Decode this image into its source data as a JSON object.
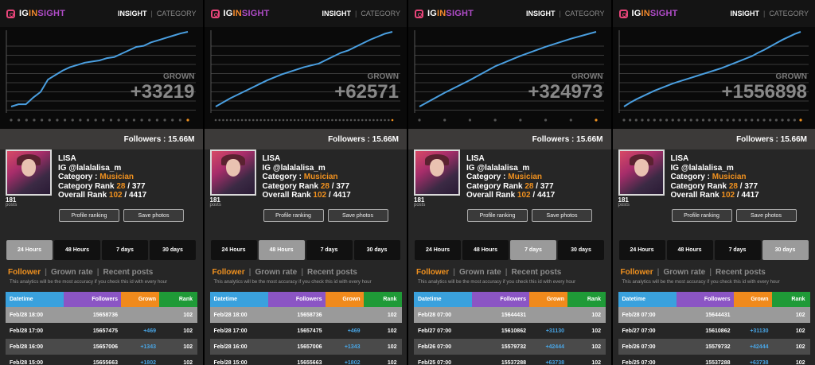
{
  "brand": {
    "part1": "IG",
    "part2": "IN",
    "part3": "SIGHT"
  },
  "nav": {
    "insight": "INSIGHT",
    "sep": "|",
    "category": "CATEGORY"
  },
  "profile": {
    "name": "LISA",
    "ig_label": "IG @lalalalisa_m",
    "category_label": "Category : ",
    "category_value": "Musician",
    "category_rank_label": "Category Rank ",
    "category_rank_value": "28",
    "category_rank_total": " / 377",
    "overall_rank_label": "Overall Rank ",
    "overall_rank_value": "102",
    "overall_rank_total": " / 4417",
    "posts_count": "181",
    "posts_label": "posts",
    "followers_text": "Followers : 15.66M"
  },
  "buttons": {
    "profile_ranking": "Profile ranking",
    "save_photos": "Save photos"
  },
  "periods": [
    "24 Hours",
    "48 Hours",
    "7 days",
    "30 days"
  ],
  "tabs": {
    "follower": "Follower",
    "grown_rate": "Grown rate",
    "recent_posts": "Recent posts",
    "sep": "|"
  },
  "note": "This analytics will be the most accuracy if you check this id with every hour",
  "table_headers": {
    "datetime": "Datetime",
    "followers": "Followers",
    "grown": "Grown",
    "rank": "Rank"
  },
  "grown_label": "GROWN",
  "colors": {
    "line": "#4a9fe0",
    "accent": "#f0911f",
    "dot": "#555555",
    "dot_active": "#f0911f"
  },
  "panels": [
    {
      "active_period": 0,
      "grown_value": "+33219",
      "chart_data": {
        "type": "line",
        "x": [
          0,
          1,
          2,
          3,
          4,
          5,
          6,
          7,
          8,
          9,
          10,
          11,
          12,
          13,
          14,
          15,
          16,
          17,
          18,
          19,
          20,
          21,
          22,
          23,
          24
        ],
        "series": [
          {
            "values": [
              0,
              1000,
              1000,
              4000,
              6500,
              12000,
              14000,
              16000,
              17500,
              18500,
              19500,
              20000,
              20500,
              21500,
              22000,
              23500,
              25000,
              26500,
              27000,
              28500,
              29500,
              30500,
              31500,
              32500,
              33219
            ]
          }
        ],
        "dots": 24
      },
      "rows": [
        {
          "date": "Feb/28 18:00",
          "followers": "15658736",
          "grown": "",
          "rank": "102"
        },
        {
          "date": "Feb/28 17:00",
          "followers": "15657475",
          "grown": "+469",
          "rank": "102"
        },
        {
          "date": "Feb/28 16:00",
          "followers": "15657006",
          "grown": "+1343",
          "rank": "102"
        },
        {
          "date": "Feb/28 15:00",
          "followers": "15655663",
          "grown": "+1802",
          "rank": "102"
        }
      ]
    },
    {
      "active_period": 1,
      "grown_value": "+62571",
      "chart_data": {
        "type": "line",
        "x": [
          0,
          1,
          2,
          3,
          4,
          5,
          6,
          7,
          8,
          9,
          10,
          11,
          12,
          13,
          14,
          15,
          16,
          17,
          18,
          19,
          20,
          21,
          22,
          23,
          24
        ],
        "series": [
          {
            "values": [
              0,
              3500,
              7000,
              10000,
              13000,
              16000,
              19000,
              22000,
              24500,
              27000,
              29000,
              31000,
              33000,
              34500,
              36000,
              39000,
              42000,
              45000,
              47000,
              50000,
              53000,
              56000,
              58500,
              61000,
              62571
            ]
          }
        ],
        "dots": 48
      },
      "rows": [
        {
          "date": "Feb/28 18:00",
          "followers": "15658736",
          "grown": "",
          "rank": "102"
        },
        {
          "date": "Feb/28 17:00",
          "followers": "15657475",
          "grown": "+469",
          "rank": "102"
        },
        {
          "date": "Feb/28 16:00",
          "followers": "15657006",
          "grown": "+1343",
          "rank": "102"
        },
        {
          "date": "Feb/28 15:00",
          "followers": "15655663",
          "grown": "+1802",
          "rank": "102"
        }
      ]
    },
    {
      "active_period": 2,
      "grown_value": "+324973",
      "chart_data": {
        "type": "line",
        "x": [
          0,
          1,
          2,
          3,
          4,
          5,
          6,
          7
        ],
        "series": [
          {
            "values": [
              0,
              60000,
              115000,
              175000,
              220000,
              260000,
              295000,
              324973
            ]
          }
        ],
        "dots": 8
      },
      "rows": [
        {
          "date": "Feb/28 07:00",
          "followers": "15644431",
          "grown": "",
          "rank": "102"
        },
        {
          "date": "Feb/27 07:00",
          "followers": "15610862",
          "grown": "+31130",
          "rank": "102"
        },
        {
          "date": "Feb/26 07:00",
          "followers": "15579732",
          "grown": "+42444",
          "rank": "102"
        },
        {
          "date": "Feb/25 07:00",
          "followers": "15537288",
          "grown": "+63738",
          "rank": "102"
        }
      ]
    },
    {
      "active_period": 3,
      "grown_value": "+1556898",
      "chart_data": {
        "type": "line",
        "x": [
          0,
          1,
          2,
          3,
          4,
          5,
          6,
          7,
          8,
          9,
          10,
          11,
          12,
          13,
          14,
          15,
          16,
          17,
          18,
          19,
          20,
          21,
          22,
          23,
          24,
          25,
          26,
          27,
          28,
          29
        ],
        "series": [
          {
            "values": [
              0,
              80000,
              150000,
              210000,
              270000,
              330000,
              380000,
              430000,
              480000,
              520000,
              560000,
              600000,
              640000,
              680000,
              720000,
              760000,
              800000,
              850000,
              900000,
              950000,
              1000000,
              1050000,
              1120000,
              1180000,
              1250000,
              1320000,
              1390000,
              1450000,
              1510000,
              1556898
            ]
          }
        ],
        "dots": 30
      },
      "rows": [
        {
          "date": "Feb/28 07:00",
          "followers": "15644431",
          "grown": "",
          "rank": "102"
        },
        {
          "date": "Feb/27 07:00",
          "followers": "15610862",
          "grown": "+31130",
          "rank": "102"
        },
        {
          "date": "Feb/26 07:00",
          "followers": "15579732",
          "grown": "+42444",
          "rank": "102"
        },
        {
          "date": "Feb/25 07:00",
          "followers": "15537288",
          "grown": "+63738",
          "rank": "102"
        }
      ]
    }
  ]
}
